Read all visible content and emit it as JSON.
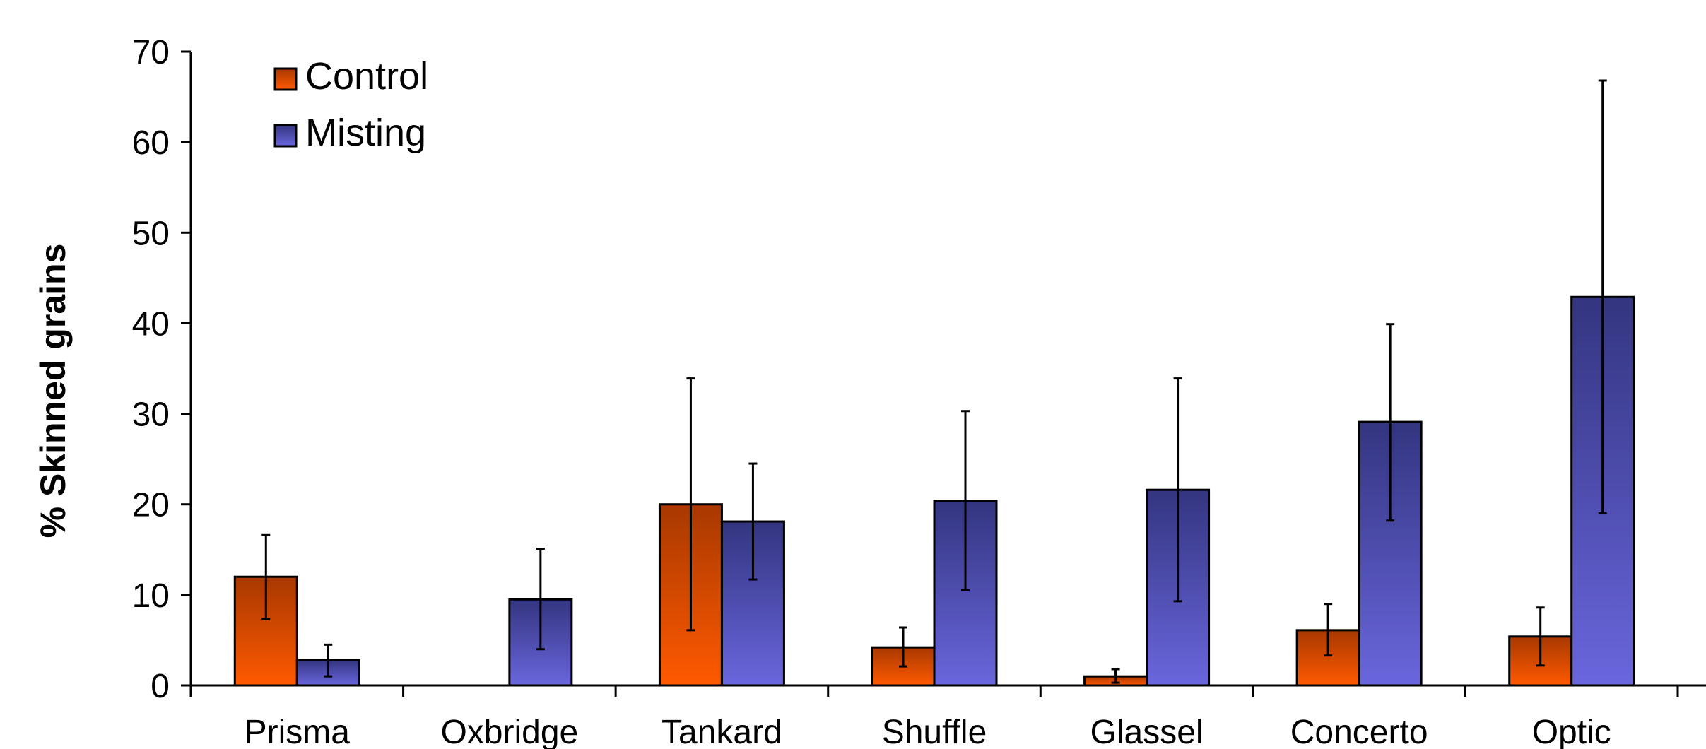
{
  "chart_data": {
    "type": "bar",
    "categories": [
      "Prisma",
      "Oxbridge",
      "Tankard",
      "Shuffle",
      "Glassel",
      "Concerto",
      "Optic"
    ],
    "ylabel": "% Skinned grains",
    "xlabel": "",
    "ylim": [
      0,
      70
    ],
    "yticks": [
      0,
      10,
      20,
      30,
      40,
      50,
      60,
      70
    ],
    "legend_position": "top-left",
    "grid": false,
    "series": [
      {
        "name": "Control",
        "color": "#ff5a00",
        "color_dark": "#a83800",
        "values": [
          12.0,
          0,
          20.0,
          4.2,
          1.0,
          6.1,
          5.4
        ],
        "err_low": [
          7.3,
          0,
          6.1,
          2.1,
          0.3,
          3.3,
          2.2
        ],
        "err_high": [
          16.6,
          0,
          33.9,
          6.4,
          1.8,
          9.0,
          8.6
        ]
      },
      {
        "name": "Misting",
        "color": "#6a66dd",
        "color_dark": "#333580",
        "values": [
          2.8,
          9.5,
          18.1,
          20.4,
          21.6,
          29.1,
          42.9
        ],
        "err_low": [
          1.0,
          4.0,
          11.7,
          10.5,
          9.3,
          18.2,
          19.0
        ],
        "err_high": [
          4.5,
          15.1,
          24.5,
          30.3,
          33.9,
          39.9,
          66.8
        ]
      }
    ]
  }
}
